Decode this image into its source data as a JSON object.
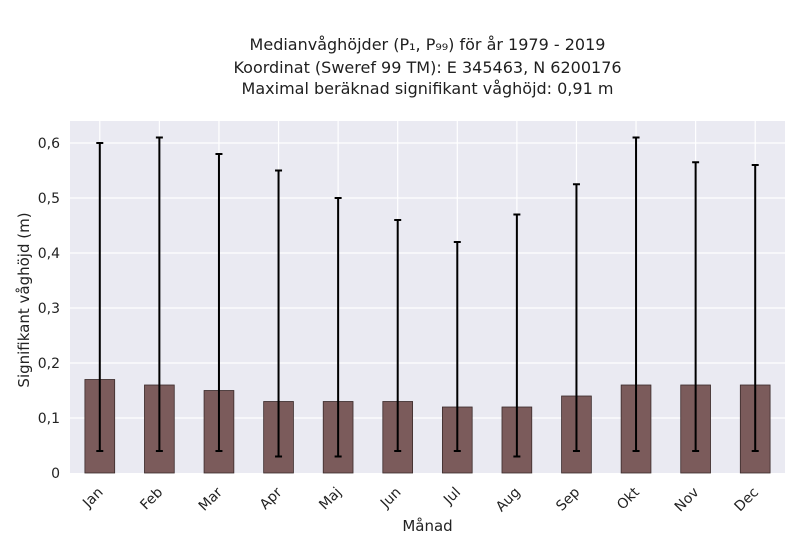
{
  "titles": {
    "line1": "Medianvåghöjder (P₁, P₉₉) för år 1979 - 2019",
    "line2": "Koordinat (Sweref 99 TM): E 345463, N 6200176",
    "line3": "Maximal beräknad signifikant våghöjd: 0,91 m"
  },
  "chart_data": {
    "type": "bar",
    "categories": [
      "Jan",
      "Feb",
      "Mar",
      "Apr",
      "Maj",
      "Jun",
      "Jul",
      "Aug",
      "Sep",
      "Okt",
      "Nov",
      "Dec"
    ],
    "values": [
      0.17,
      0.16,
      0.15,
      0.13,
      0.13,
      0.13,
      0.12,
      0.12,
      0.14,
      0.16,
      0.16,
      0.16
    ],
    "p1": [
      0.04,
      0.04,
      0.04,
      0.03,
      0.03,
      0.04,
      0.04,
      0.03,
      0.04,
      0.04,
      0.04,
      0.04
    ],
    "p99": [
      0.6,
      0.61,
      0.58,
      0.55,
      0.5,
      0.46,
      0.42,
      0.47,
      0.525,
      0.61,
      0.565,
      0.56
    ],
    "xlabel": "Månad",
    "ylabel": "Signifikant våghöjd (m)",
    "ylim": [
      0,
      0.64
    ],
    "yticks": [
      0,
      0.1,
      0.2,
      0.3,
      0.4,
      0.5,
      0.6
    ],
    "ytick_labels": [
      "0",
      "0,1",
      "0,2",
      "0,3",
      "0,4",
      "0,5",
      "0,6"
    ],
    "grid": true,
    "colors": {
      "bar": "#7b5b5b",
      "bar_edge": "#3a2a2a",
      "errorbar": "#000000",
      "plot_bg": "#eaeaf2",
      "grid": "#ffffff"
    }
  }
}
